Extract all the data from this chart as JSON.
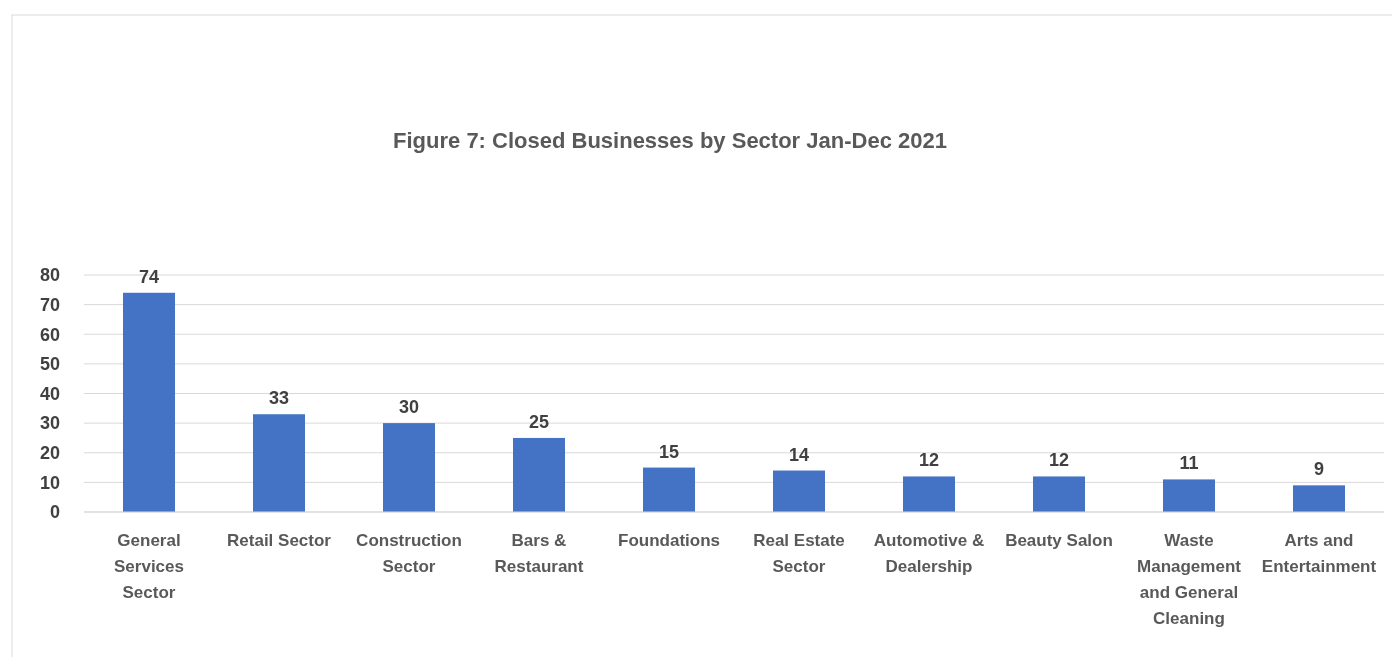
{
  "chart_data": {
    "type": "bar",
    "title": "Figure 7: Closed Businesses by Sector Jan-Dec 2021",
    "categories": [
      "General Services Sector",
      "Retail Sector",
      "Construction Sector",
      "Bars & Restaurant",
      "Foundations",
      "Real Estate Sector",
      "Automotive & Dealership",
      "Beauty Salon",
      "Waste Management and General Cleaning",
      "Arts and Entertainment"
    ],
    "values": [
      74,
      33,
      30,
      25,
      15,
      14,
      12,
      12,
      11,
      9
    ],
    "color": "#4472c4",
    "ylim": [
      0,
      80
    ],
    "yticks": [
      0,
      10,
      20,
      30,
      40,
      50,
      60,
      70,
      80
    ],
    "grid": "y",
    "data_labels": true
  }
}
